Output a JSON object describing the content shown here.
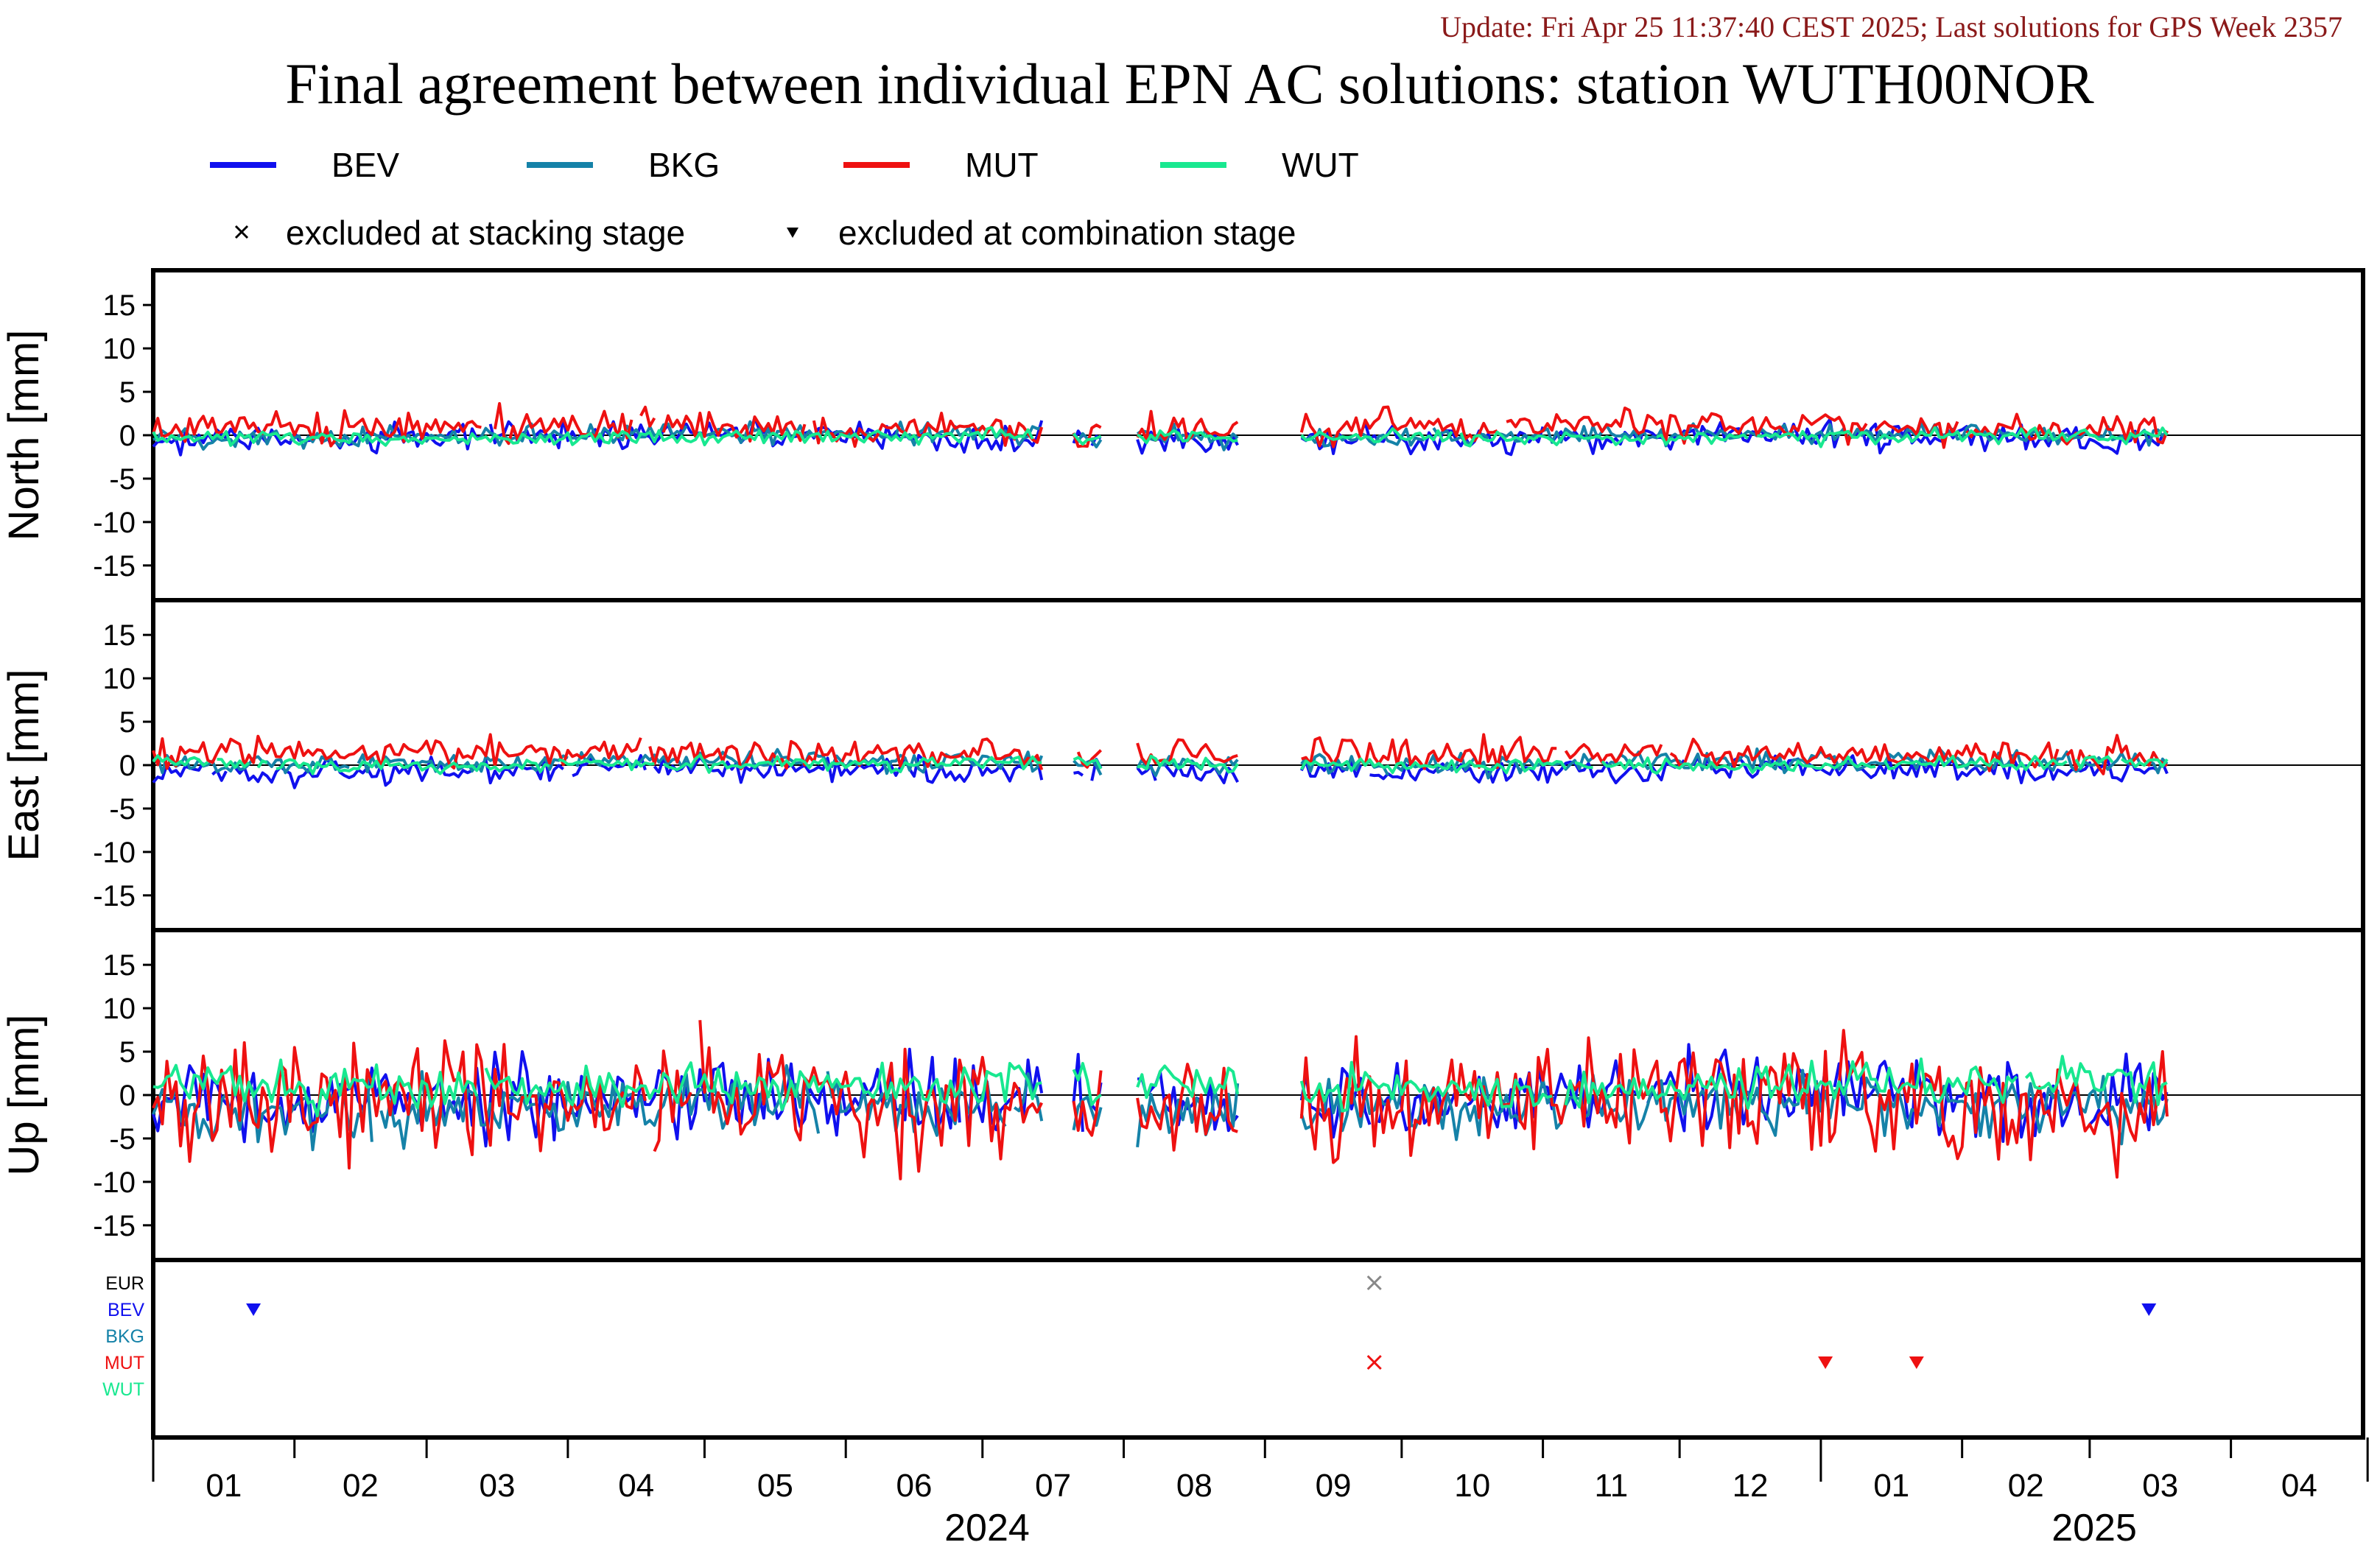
{
  "update_text": "Update: Fri Apr 25 11:37:40 CEST 2025; Last solutions for GPS Week 2357",
  "title": "Final agreement between individual EPN AC solutions: station WUTH00NOR",
  "legend": {
    "series": [
      {
        "name": "BEV",
        "color": "#1010ee"
      },
      {
        "name": "BKG",
        "color": "#1582a8"
      },
      {
        "name": "MUT",
        "color": "#ee1111"
      },
      {
        "name": "WUT",
        "color": "#18e890"
      }
    ],
    "marker_stacking": "excluded at stacking stage",
    "marker_combination": "excluded at combination stage"
  },
  "chart_data": {
    "type": "line",
    "x_axis": {
      "months": [
        "01",
        "02",
        "03",
        "04",
        "05",
        "06",
        "07",
        "08",
        "09",
        "10",
        "11",
        "12",
        "01",
        "02",
        "03",
        "04"
      ],
      "years": [
        "2024",
        "2025"
      ],
      "range": [
        "2024-01-01",
        "2025-04-30"
      ]
    },
    "panels": [
      {
        "id": "north",
        "ylabel": "North [mm]",
        "ylim": [
          -19,
          19
        ],
        "yticks": [
          15,
          10,
          5,
          0,
          -5,
          -10,
          -15
        ]
      },
      {
        "id": "east",
        "ylabel": "East [mm]",
        "ylim": [
          -19,
          19
        ],
        "yticks": [
          15,
          10,
          5,
          0,
          -5,
          -10,
          -15
        ]
      },
      {
        "id": "up",
        "ylabel": "Up [mm]",
        "ylim": [
          -19,
          19
        ],
        "yticks": [
          15,
          10,
          5,
          0,
          -5,
          -10,
          -15
        ]
      }
    ],
    "series": [
      {
        "name": "BEV",
        "color": "#1010ee",
        "seed": 11,
        "north": {
          "mean": -0.3,
          "amp": 0.8
        },
        "east": {
          "mean": -0.6,
          "amp": 0.7
        },
        "up": {
          "mean": -0.5,
          "amp": 2.2
        }
      },
      {
        "name": "BKG",
        "color": "#1582a8",
        "seed": 23,
        "north": {
          "mean": 0.0,
          "amp": 0.6
        },
        "east": {
          "mean": 0.3,
          "amp": 0.6
        },
        "up": {
          "mean": -1.6,
          "amp": 1.8
        }
      },
      {
        "name": "MUT",
        "color": "#ee1111",
        "seed": 37,
        "north": {
          "mean": 0.8,
          "amp": 0.9
        },
        "east": {
          "mean": 1.2,
          "amp": 0.9
        },
        "up": {
          "mean": -0.8,
          "amp": 3.4
        }
      },
      {
        "name": "WUT",
        "color": "#18e890",
        "seed": 53,
        "north": {
          "mean": -0.2,
          "amp": 0.4
        },
        "east": {
          "mean": 0.1,
          "amp": 0.4
        },
        "up": {
          "mean": 1.0,
          "amp": 1.2
        }
      }
    ],
    "gaps": [
      [
        "2024-07-15",
        "2024-07-20"
      ],
      [
        "2024-07-28",
        "2024-08-03"
      ],
      [
        "2024-08-27",
        "2024-09-08"
      ]
    ],
    "exclusion_rows": [
      "EUR",
      "BEV",
      "BKG",
      "MUT",
      "WUT"
    ],
    "exclusions": [
      {
        "row": "BEV",
        "date": "2024-01-23",
        "marker": "triangle",
        "color": "#1010ee"
      },
      {
        "row": "EUR",
        "date": "2024-09-25",
        "marker": "cross",
        "color": "#888888"
      },
      {
        "row": "MUT",
        "date": "2024-09-25",
        "marker": "cross",
        "color": "#ee1111"
      },
      {
        "row": "MUT",
        "date": "2025-01-02",
        "marker": "triangle",
        "color": "#ee1111"
      },
      {
        "row": "MUT",
        "date": "2025-01-22",
        "marker": "triangle",
        "color": "#ee1111"
      },
      {
        "row": "BEV",
        "date": "2025-03-14",
        "marker": "triangle",
        "color": "#1010ee"
      }
    ]
  }
}
